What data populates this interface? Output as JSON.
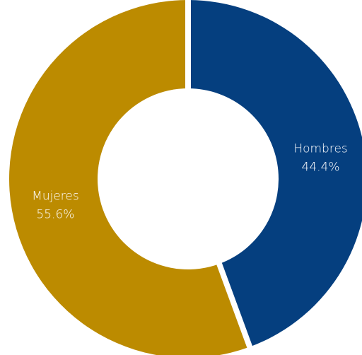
{
  "chart_data": {
    "type": "pie",
    "variant": "donut",
    "slices": [
      {
        "label": "Hombres",
        "value": 44.4,
        "value_label": "44.4%",
        "color": "#053F7F"
      },
      {
        "label": "Mujeres",
        "value": 55.6,
        "value_label": "55.6%",
        "color": "#BC8B00"
      }
    ],
    "start_angle_deg": 0,
    "direction": "clockwise",
    "legend": "none",
    "background": "#FFFFFF",
    "separator_color": "#FFFFFF"
  }
}
